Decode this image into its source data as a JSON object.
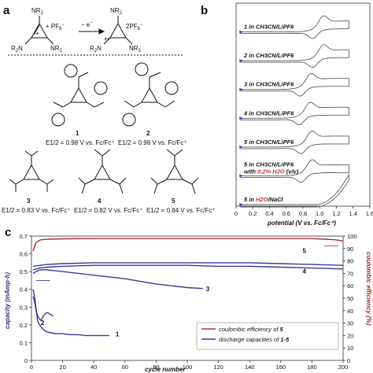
{
  "panels": {
    "a": "a",
    "b": "b",
    "c": "c"
  },
  "scheme": {
    "reactant_top": "NR",
    "reactant_top_sub": "2",
    "counter_ion": "PF",
    "counter_ion_sub": "6",
    "counter_ion_charge": "−",
    "reaction_arrow": "− e",
    "reaction_arrow_charge": "−",
    "product_counter": "2PF",
    "product_counter_sub": "6",
    "product_counter_charge": "−",
    "left_group": "R",
    "left_group_sub": "2",
    "left_n": "N",
    "right_group": "NR",
    "right_group_sub": "2",
    "radical_charge": "+•",
    "cation_charge": "+"
  },
  "compounds": [
    {
      "number": "1",
      "e_half": "E1/2 = 0.98 V vs. Fc/Fc⁺"
    },
    {
      "number": "2",
      "e_half": "E1/2 = 0.98 V vs. Fc/Fc⁺"
    },
    {
      "number": "3",
      "e_half": "E1/2 = 0.83 V vs. Fc/Fc⁺"
    },
    {
      "number": "4",
      "e_half": "E1/2 = 0.82 V vs. Fc/Fc⁺"
    },
    {
      "number": "5",
      "e_half": "E1/2 = 0.84 V vs. Fc/Fc⁺"
    }
  ],
  "chart_data": [
    {
      "type": "line",
      "panel": "b",
      "xlabel": "potential (V vs. Fc/Fc⁺)",
      "xlim": [
        0,
        1.6
      ],
      "xticks": [
        "0",
        "0.2",
        "0.4",
        "0.6",
        "0.8",
        "1.0",
        "1.2",
        "1.4",
        "1.6"
      ],
      "traces": [
        {
          "label": "1 in CH3CN/LiPF6",
          "e_half": 0.98
        },
        {
          "label": "2 in CH3CN/LiPF6",
          "e_half": 0.98
        },
        {
          "label": "3 in CH3CN/LiPF6",
          "e_half": 0.83
        },
        {
          "label": "4 in CH3CN/LiPF6",
          "e_half": 0.82
        },
        {
          "label": "5 in CH3CN/LiPF6",
          "e_half": 0.84
        },
        {
          "label": "5 in CH3CN/LiPF6",
          "label_line2_prefix": "with ",
          "label_line2_highlight": "0.2% H2O",
          "label_line2_suffix": " (v/v)",
          "e_half": 0.84
        },
        {
          "label_prefix": "5 in ",
          "label_highlight": "H2O",
          "label_suffix": "/NaCl",
          "e_half": 0.95
        }
      ],
      "colors": {
        "trace": "#5a5a5a",
        "highlight": "#c0392b",
        "arrow": "#2a52be"
      }
    },
    {
      "type": "line",
      "panel": "c",
      "xlabel": "cycle number",
      "ylabel_left": "capacity (mAmp·h)",
      "ylabel_right": "coulombic efficiency (%)",
      "xlim": [
        0,
        200
      ],
      "ylim_left": [
        0,
        0.7
      ],
      "ylim_right": [
        0,
        100
      ],
      "xticks": [
        "0",
        "20",
        "40",
        "60",
        "80",
        "100",
        "120",
        "140",
        "160",
        "180",
        "200"
      ],
      "yticks_left": [
        "0",
        "0.1",
        "0.2",
        "0.3",
        "0.4",
        "0.5",
        "0.6",
        "0.7"
      ],
      "yticks_right": [
        "0",
        "10",
        "20",
        "30",
        "40",
        "50",
        "60",
        "70",
        "80",
        "90",
        "100"
      ],
      "series": [
        {
          "name": "5",
          "kind": "coulombic",
          "color": "#b03030",
          "x": [
            1,
            3,
            6,
            10,
            20,
            40,
            60,
            80,
            100,
            120,
            140,
            160,
            180,
            188,
            195,
            200
          ],
          "values": [
            88,
            95,
            97,
            97.5,
            97.8,
            98,
            98,
            98,
            98,
            98,
            98,
            98,
            98,
            97.5,
            97,
            96
          ]
        },
        {
          "name": "1",
          "kind": "capacity",
          "color": "#3a3a9a",
          "x": [
            1,
            2,
            3,
            4,
            6,
            8,
            10,
            13,
            16,
            20,
            25,
            30,
            35,
            40,
            45,
            50
          ],
          "values": [
            0.4,
            0.36,
            0.29,
            0.22,
            0.19,
            0.17,
            0.16,
            0.155,
            0.15,
            0.15,
            0.145,
            0.145,
            0.14,
            0.14,
            0.14,
            0.14
          ]
        },
        {
          "name": "2",
          "kind": "capacity",
          "color": "#3a3a9a",
          "x": [
            1,
            2,
            3,
            4,
            5,
            6,
            7,
            8,
            10,
            12,
            14
          ],
          "values": [
            0.36,
            0.33,
            0.28,
            0.25,
            0.235,
            0.225,
            0.24,
            0.255,
            0.27,
            0.26,
            0.25
          ]
        },
        {
          "name": "3",
          "kind": "capacity",
          "color": "#3a3a9a",
          "x": [
            1,
            3,
            5,
            10,
            20,
            30,
            40,
            50,
            60,
            70,
            80,
            90,
            100,
            110
          ],
          "values": [
            0.49,
            0.5,
            0.51,
            0.51,
            0.5,
            0.49,
            0.48,
            0.47,
            0.46,
            0.445,
            0.43,
            0.42,
            0.41,
            0.405
          ]
        },
        {
          "name": "4",
          "kind": "capacity",
          "color": "#3a3a9a",
          "x": [
            1,
            5,
            10,
            20,
            40,
            60,
            80,
            100,
            120,
            140,
            160,
            180,
            200
          ],
          "values": [
            0.51,
            0.52,
            0.525,
            0.53,
            0.535,
            0.535,
            0.535,
            0.535,
            0.53,
            0.53,
            0.525,
            0.52,
            0.515
          ]
        },
        {
          "name": "5",
          "kind": "capacity",
          "color": "#3a3a9a",
          "x": [
            1,
            5,
            10,
            20,
            40,
            60,
            80,
            100,
            120,
            140,
            160,
            180,
            200
          ],
          "values": [
            0.53,
            0.535,
            0.54,
            0.545,
            0.55,
            0.55,
            0.55,
            0.55,
            0.55,
            0.55,
            0.545,
            0.54,
            0.535
          ]
        }
      ],
      "legend": [
        {
          "label": "coulombic efficiency of ",
          "label_bold": "5",
          "color": "#b03030"
        },
        {
          "label": "discharge capacities of ",
          "label_bold": "1-5",
          "color": "#3a3a9a"
        }
      ],
      "curve_labels": [
        "1",
        "2",
        "3",
        "4",
        "5"
      ]
    }
  ]
}
